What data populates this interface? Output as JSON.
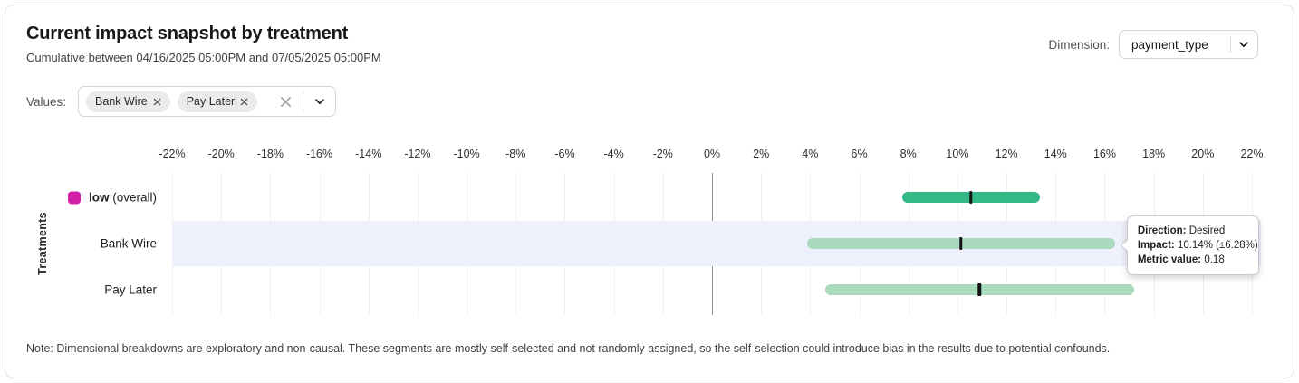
{
  "header": {
    "title": "Current impact snapshot by treatment",
    "subtitle": "Cumulative between 04/16/2025 05:00PM and 07/05/2025 05:00PM",
    "dimension_label": "Dimension:",
    "dimension_value": "payment_type"
  },
  "filters": {
    "values_label": "Values:",
    "chips": [
      {
        "label": "Bank Wire"
      },
      {
        "label": "Pay Later"
      }
    ]
  },
  "note": "Note: Dimensional breakdowns are exploratory and non-causal. These segments are mostly self-selected and not randomly assigned, so the self-selection could introduce bias in the results due to potential confounds.",
  "chart_data": {
    "type": "range-bar",
    "ylabel": "Treatments",
    "axis": {
      "min": -22,
      "max": 22,
      "step": 2,
      "unit": "%"
    },
    "grid": true,
    "rows": [
      {
        "label": "low",
        "label_note": "(overall)",
        "legend_color": "#d21fa5",
        "impact_pct": 10.55,
        "ci_pct": 2.8,
        "low_pct": 7.75,
        "high_pct": 13.35,
        "bar_color": "#34b886",
        "highlighted": false
      },
      {
        "label": "Bank Wire",
        "impact_pct": 10.14,
        "ci_pct": 6.28,
        "low_pct": 3.86,
        "high_pct": 16.42,
        "bar_color": "#a9dabd",
        "highlighted": true
      },
      {
        "label": "Pay Later",
        "impact_pct": 10.9,
        "ci_pct": 6.3,
        "low_pct": 4.6,
        "high_pct": 17.2,
        "bar_color": "#a9dabd",
        "highlighted": false
      }
    ],
    "highlight_band_color": "#eef0fb",
    "marker_color": "#131316",
    "tooltip": {
      "direction_label": "Direction:",
      "direction_value": "Desired",
      "impact_label": "Impact:",
      "impact_value": "10.14% (±6.28%)",
      "metric_label": "Metric value:",
      "metric_value": "0.18"
    }
  }
}
